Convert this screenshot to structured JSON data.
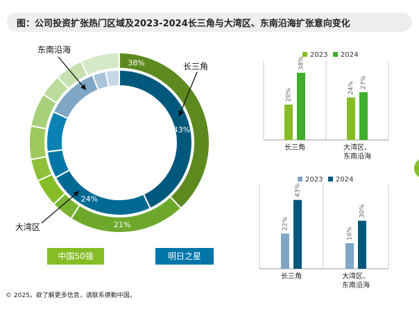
{
  "title": "图：公司投资扩张热门区域及2023-2024长三角与大湾区、东南沿海扩张意向变化",
  "footer": "© 2025。欲了解更多信息，请联系德勤中国。",
  "donut": {
    "region_labels": [
      "长三角",
      "大湾区",
      "东南沿海"
    ],
    "legend": [
      "中国50强",
      "明日之星"
    ],
    "colors": {
      "outer_main": "#5d8a1f",
      "inner_main": "#00587c",
      "inner_mid": "#0076a8",
      "inner_light": "#7fa6c4",
      "inner_lighter": "#a8c4da"
    }
  },
  "chart_data": [
    {
      "type": "pie",
      "subtype": "donut-outer",
      "series_name": "中国50强",
      "values": [
        38,
        21,
        4,
        5,
        4,
        6,
        6,
        4,
        5,
        7
      ],
      "slice_labels": [
        "38%",
        "21%",
        "",
        "",
        "",
        "",
        "",
        "",
        "",
        ""
      ],
      "colors": [
        "#5d8a1f",
        "#6ea82b",
        "#7ab332",
        "#86bc25",
        "#8fc03c",
        "#9ec85a",
        "#a8d07a",
        "#bcdc9c",
        "#c6e0b0",
        "#d6e9c6"
      ]
    },
    {
      "type": "pie",
      "subtype": "donut-inner",
      "series_name": "明日之星",
      "values": [
        43,
        24,
        6,
        9,
        12,
        3,
        3
      ],
      "slice_labels": [
        "43%",
        "24%",
        "",
        "",
        "",
        "",
        ""
      ],
      "colors": [
        "#00587c",
        "#006a94",
        "#0076a8",
        "#0b82b4",
        "#7fa6c4",
        "#a8c4da",
        "#c6d8e8"
      ]
    },
    {
      "type": "bar",
      "series": [
        {
          "name": "2023",
          "values": [
            20,
            24
          ],
          "color": "#86bc25"
        },
        {
          "name": "2024",
          "values": [
            38,
            27
          ],
          "color": "#3fae2a"
        }
      ],
      "categories": [
        [
          "长三角"
        ],
        [
          "大湾区、",
          "东南沿海"
        ]
      ],
      "labels": [
        [
          "20%",
          "24%"
        ],
        [
          "38%",
          "27%"
        ]
      ],
      "ylim": [
        0,
        40
      ]
    },
    {
      "type": "bar",
      "series": [
        {
          "name": "2023",
          "values": [
            22,
            16
          ],
          "color": "#7fa6c4"
        },
        {
          "name": "2024",
          "values": [
            43,
            30
          ],
          "color": "#00587c"
        }
      ],
      "categories": [
        [
          "长三角"
        ],
        [
          "大湾区、",
          "东南沿海"
        ]
      ],
      "labels": [
        [
          "22%",
          "16%"
        ],
        [
          "43%",
          "30%"
        ]
      ],
      "ylim": [
        0,
        45
      ]
    }
  ]
}
